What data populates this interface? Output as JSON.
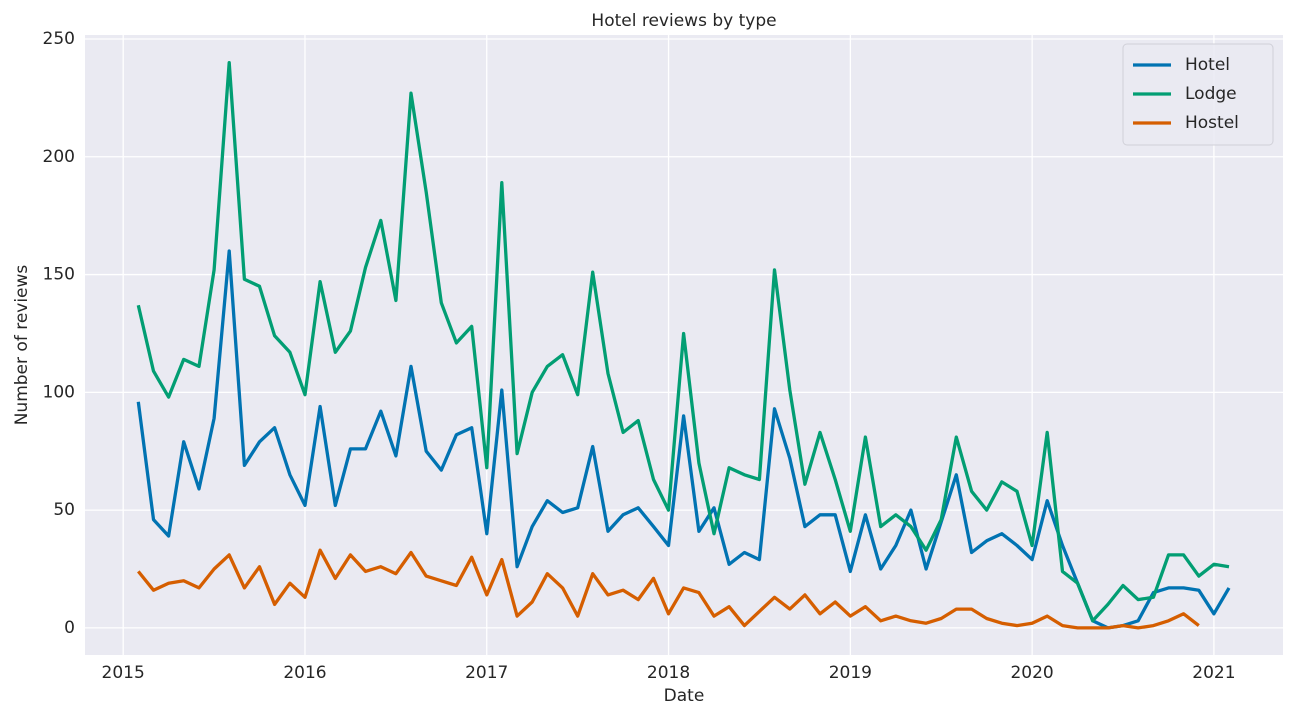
{
  "chart_data": {
    "type": "line",
    "title": "Hotel reviews by type",
    "xlabel": "Date",
    "ylabel": "Number of reviews",
    "x": [
      2015.083,
      2015.167,
      2015.25,
      2015.333,
      2015.417,
      2015.5,
      2015.583,
      2015.667,
      2015.75,
      2015.833,
      2015.917,
      2016,
      2016.083,
      2016.167,
      2016.25,
      2016.333,
      2016.417,
      2016.5,
      2016.583,
      2016.667,
      2016.75,
      2016.833,
      2016.917,
      2017,
      2017.083,
      2017.167,
      2017.25,
      2017.333,
      2017.417,
      2017.5,
      2017.583,
      2017.667,
      2017.75,
      2017.833,
      2017.917,
      2018,
      2018.083,
      2018.167,
      2018.25,
      2018.333,
      2018.417,
      2018.5,
      2018.583,
      2018.667,
      2018.75,
      2018.833,
      2018.917,
      2019,
      2019.083,
      2019.167,
      2019.25,
      2019.333,
      2019.417,
      2019.5,
      2019.583,
      2019.667,
      2019.75,
      2019.833,
      2019.917,
      2020,
      2020.083,
      2020.167,
      2020.25,
      2020.333,
      2020.417,
      2020.5,
      2020.583,
      2020.667,
      2020.75,
      2020.833,
      2020.917,
      2021,
      2021.083
    ],
    "series": [
      {
        "name": "Hotel",
        "color": "#0173b2",
        "values": [
          96,
          46,
          39,
          79,
          59,
          89,
          160,
          69,
          79,
          85,
          65,
          52,
          94,
          52,
          76,
          76,
          92,
          73,
          111,
          75,
          67,
          82,
          85,
          40,
          101,
          26,
          43,
          54,
          49,
          51,
          77,
          41,
          48,
          51,
          43,
          35,
          90,
          41,
          51,
          27,
          32,
          29,
          93,
          72,
          43,
          48,
          48,
          24,
          48,
          25,
          35,
          50,
          25,
          45,
          65,
          32,
          37,
          40,
          35,
          29,
          54,
          35,
          19,
          3,
          0,
          1,
          3,
          15,
          17,
          17,
          16,
          6,
          17
        ]
      },
      {
        "name": "Lodge",
        "color": "#029e73",
        "values": [
          137,
          109,
          98,
          114,
          111,
          152,
          240,
          148,
          145,
          124,
          117,
          99,
          147,
          117,
          126,
          153,
          173,
          139,
          227,
          185,
          138,
          121,
          128,
          68,
          189,
          74,
          100,
          111,
          116,
          99,
          151,
          108,
          83,
          88,
          63,
          50,
          125,
          70,
          40,
          68,
          65,
          63,
          152,
          101,
          61,
          83,
          63,
          41,
          81,
          43,
          48,
          43,
          33,
          46,
          81,
          58,
          50,
          62,
          58,
          35,
          83,
          24,
          19,
          3,
          10,
          18,
          12,
          13,
          31,
          31,
          22,
          27,
          26
        ]
      },
      {
        "name": "Hostel",
        "color": "#d55e00",
        "values": [
          24,
          16,
          19,
          20,
          17,
          25,
          31,
          17,
          26,
          10,
          19,
          13,
          33,
          21,
          31,
          24,
          26,
          23,
          32,
          22,
          20,
          18,
          30,
          14,
          29,
          5,
          11,
          23,
          17,
          5,
          23,
          14,
          16,
          12,
          21,
          6,
          17,
          15,
          5,
          9,
          1,
          7,
          13,
          8,
          14,
          6,
          11,
          5,
          9,
          3,
          5,
          3,
          2,
          4,
          8,
          8,
          4,
          2,
          1,
          2,
          5,
          1,
          0,
          0,
          0,
          1,
          0,
          1,
          3,
          6,
          1,
          null,
          null
        ]
      }
    ],
    "xlim": [
      2014.79,
      2021.38
    ],
    "xticks": [
      2015,
      2016,
      2017,
      2018,
      2019,
      2020,
      2021
    ],
    "ylim": [
      -11.5,
      251.7
    ],
    "yticks": [
      0,
      50,
      100,
      150,
      200,
      250
    ],
    "grid": true,
    "legend": "upper right"
  }
}
